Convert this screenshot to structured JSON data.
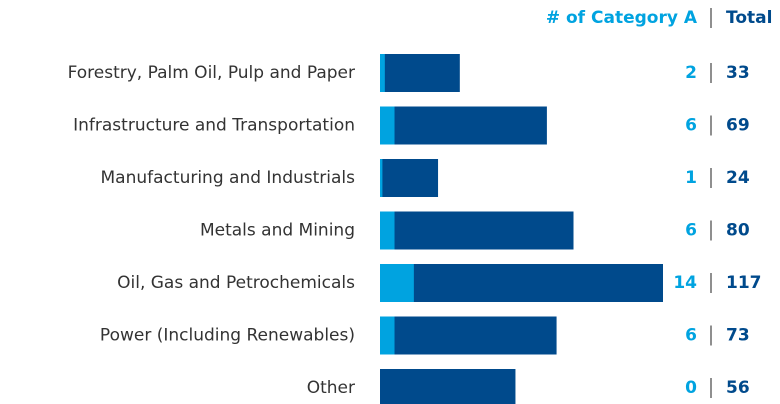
{
  "chart_data": {
    "type": "bar",
    "orientation": "horizontal",
    "categories": [
      "Forestry, Palm Oil, Pulp and Paper",
      "Infrastructure and Transportation",
      "Manufacturing and Industrials",
      "Metals and Mining",
      "Oil, Gas and Petrochemicals",
      "Power (Including Renewables)",
      "Other"
    ],
    "series": [
      {
        "name": "# of Category A",
        "color": "#00a3e0",
        "values": [
          2,
          6,
          1,
          6,
          14,
          6,
          0
        ]
      },
      {
        "name": "Total",
        "color": "#004a8c",
        "values": [
          33,
          69,
          24,
          80,
          117,
          73,
          56
        ]
      }
    ]
  }
}
